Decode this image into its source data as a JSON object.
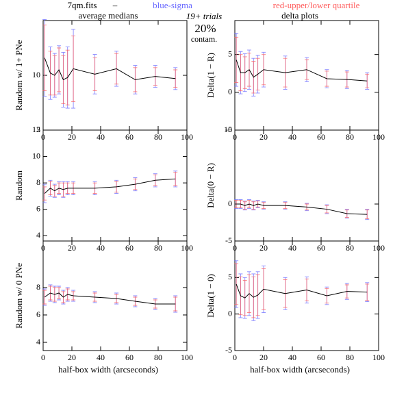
{
  "header": {
    "file": "7qm.fits",
    "dash": "–",
    "sigma_label": "blue-sigma",
    "sigma_color": "#6a6aff",
    "quartile_label": "red-upper/lower quartile",
    "quartile_color": "#ff5c5c",
    "trials": "19+ trials",
    "percent": "20%",
    "contam": "contam."
  },
  "chart_data": [
    {
      "type": "line",
      "title": "average medians",
      "y_label": "Random w/ 1+ PNe",
      "x": [
        1,
        5,
        8,
        11,
        14,
        17,
        21,
        36,
        51,
        64,
        78,
        92
      ],
      "values": [
        11.6,
        10.2,
        10,
        10.5,
        9.6,
        9.8,
        10.6,
        10.1,
        10.6,
        9.6,
        9.9,
        9.7
      ],
      "sigma": [
        3.5,
        2.4,
        2,
        2.2,
        2.5,
        2.8,
        3.6,
        1.8,
        1.6,
        1.3,
        1,
        1
      ],
      "quartile": [
        3,
        2,
        1.8,
        2,
        2.2,
        2.5,
        3,
        1.5,
        1.4,
        1.1,
        0.8,
        0.8
      ],
      "color": "#000000",
      "xlim": [
        0,
        100
      ],
      "xticks": [
        0,
        20,
        40,
        60,
        80,
        100
      ],
      "ylim": [
        5,
        15
      ],
      "yticks": [
        5,
        10
      ]
    },
    {
      "type": "line",
      "y_label": "Random",
      "x": [
        1,
        5,
        8,
        11,
        14,
        17,
        21,
        36,
        51,
        64,
        78,
        92
      ],
      "values": [
        7.2,
        7.6,
        7.4,
        7.6,
        7.5,
        7.6,
        7.6,
        7.6,
        7.7,
        7.9,
        8.2,
        8.3
      ],
      "sigma": [
        0.7,
        0.6,
        0.5,
        0.5,
        0.6,
        0.5,
        0.5,
        0.5,
        0.5,
        0.5,
        0.5,
        0.6
      ],
      "quartile": [
        0.5,
        0.5,
        0.4,
        0.4,
        0.5,
        0.4,
        0.4,
        0.4,
        0.4,
        0.4,
        0.4,
        0.5
      ],
      "color": "#000000",
      "xlim": [
        0,
        100
      ],
      "xticks": [
        0,
        20,
        40,
        60,
        80,
        100
      ],
      "ylim": [
        3.6,
        12
      ],
      "yticks": [
        4,
        6,
        8,
        10,
        12
      ]
    },
    {
      "type": "line",
      "y_label": "Random w/ 0 PNe",
      "x_label": "half-box width (arcseconds)",
      "x": [
        1,
        5,
        8,
        11,
        14,
        17,
        21,
        36,
        51,
        64,
        78,
        92
      ],
      "values": [
        7.3,
        7.6,
        7.5,
        7.6,
        7.3,
        7.5,
        7.4,
        7.3,
        7.2,
        7,
        6.8,
        6.8
      ],
      "sigma": [
        0.6,
        0.6,
        0.6,
        0.5,
        0.5,
        0.5,
        0.4,
        0.4,
        0.4,
        0.4,
        0.4,
        0.6
      ],
      "quartile": [
        0.5,
        0.5,
        0.5,
        0.4,
        0.4,
        0.4,
        0.3,
        0.3,
        0.3,
        0.3,
        0.3,
        0.5
      ],
      "color": "#000000",
      "xlim": [
        0,
        100
      ],
      "xticks": [
        0,
        20,
        40,
        60,
        80,
        100
      ],
      "ylim": [
        3.4,
        11.4
      ],
      "yticks": [
        4,
        6,
        8
      ]
    },
    {
      "type": "line",
      "title": "delta plots",
      "y_label": "Delta(1 − R)",
      "x": [
        1,
        4,
        7,
        10,
        13,
        16,
        20,
        35,
        50,
        64,
        78,
        92
      ],
      "values": [
        4.3,
        2.6,
        2.6,
        3,
        2,
        2.4,
        3,
        2.6,
        3,
        1.8,
        1.7,
        1.5
      ],
      "sigma": [
        3.5,
        2.8,
        2.5,
        2.6,
        2.5,
        2.5,
        2.3,
        2.2,
        1.6,
        1.2,
        1.2,
        1.1
      ],
      "quartile": [
        3,
        2.4,
        2.1,
        2.2,
        2.1,
        2.1,
        2,
        1.9,
        1.3,
        1,
        1,
        0.9
      ],
      "color": "#000000",
      "xlim": [
        0,
        100
      ],
      "xticks": [
        0,
        20,
        40,
        60,
        80,
        100
      ],
      "ylim": [
        -5,
        9.5
      ],
      "yticks": [
        -5,
        0,
        5
      ]
    },
    {
      "type": "line",
      "y_label": "Delta(0 − R)",
      "x": [
        1,
        4,
        7,
        10,
        13,
        16,
        20,
        35,
        50,
        64,
        78,
        92
      ],
      "values": [
        0,
        0,
        -0.2,
        0,
        -0.2,
        0,
        -0.2,
        -0.2,
        -0.4,
        -0.7,
        -1.3,
        -1.4
      ],
      "sigma": [
        0.6,
        0.6,
        0.6,
        0.6,
        0.6,
        0.5,
        0.5,
        0.5,
        0.5,
        0.6,
        0.6,
        0.7
      ],
      "quartile": [
        0.5,
        0.5,
        0.5,
        0.5,
        0.5,
        0.4,
        0.4,
        0.4,
        0.4,
        0.5,
        0.5,
        0.6
      ],
      "color": "#000000",
      "xlim": [
        0,
        100
      ],
      "xticks": [
        0,
        20,
        40,
        60,
        80,
        100
      ],
      "ylim": [
        -5,
        10
      ],
      "yticks": [
        -5,
        0,
        10
      ]
    },
    {
      "type": "line",
      "y_label": "Delta(1 − 0)",
      "x_label": "half-box width (arcseconds)",
      "x": [
        1,
        4,
        7,
        10,
        13,
        16,
        20,
        35,
        50,
        64,
        78,
        92
      ],
      "values": [
        4.1,
        2.5,
        2.2,
        2.8,
        2.3,
        2.6,
        3.4,
        2.8,
        3.3,
        2.5,
        3.1,
        3
      ],
      "sigma": [
        3.2,
        3,
        2.8,
        3,
        3.2,
        3.2,
        3.2,
        2.2,
        1.8,
        1.2,
        1.1,
        1.3
      ],
      "quartile": [
        2.8,
        2.6,
        2.4,
        2.6,
        2.8,
        2.8,
        2.8,
        1.9,
        1.5,
        1,
        0.9,
        1.1
      ],
      "color": "#000000",
      "xlim": [
        0,
        100
      ],
      "xticks": [
        0,
        20,
        40,
        60,
        80,
        100
      ],
      "ylim": [
        -5,
        10
      ],
      "yticks": [
        -5,
        0,
        5
      ]
    }
  ]
}
